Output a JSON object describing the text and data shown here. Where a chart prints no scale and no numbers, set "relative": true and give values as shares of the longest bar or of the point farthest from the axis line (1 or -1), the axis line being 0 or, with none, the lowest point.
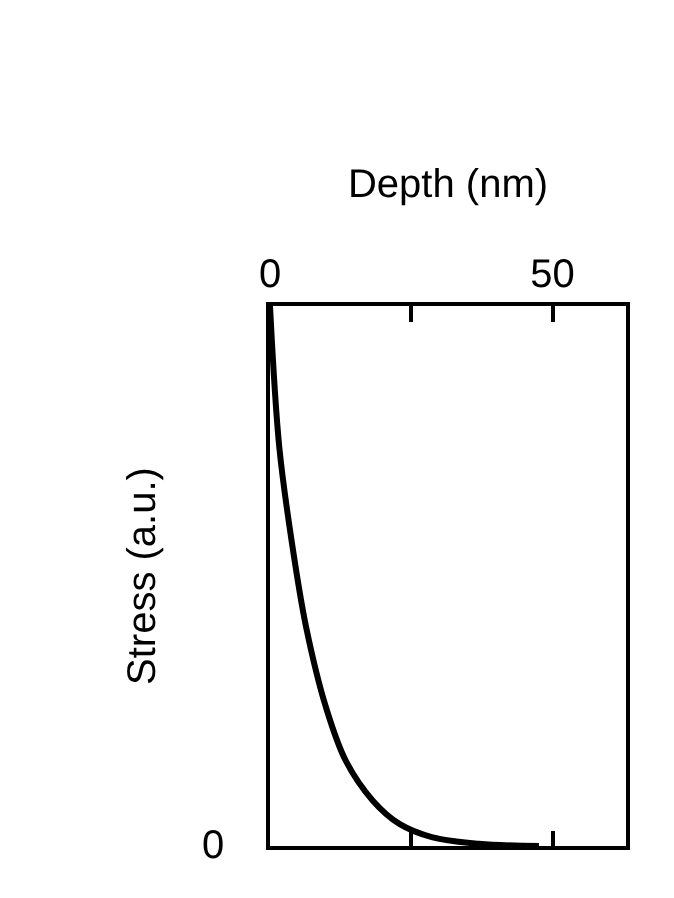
{
  "chart_data": {
    "type": "line",
    "xlabel": "Depth (nm)",
    "ylabel": "Stress (a.u.)",
    "relative": true,
    "xlim": [
      0,
      63
    ],
    "xticks": [
      0,
      {
        "value": 25,
        "label": null
      },
      50
    ],
    "series": [
      {
        "color": "#000000",
        "x": [
          0,
          1.65,
          4.0,
          6.4,
          9.9,
          13.4,
          18.2,
          22.9,
          28.8,
          37.0,
          47.6
        ],
        "values": [
          1,
          0.738,
          0.553,
          0.405,
          0.257,
          0.158,
          0.084,
          0.041,
          0.016,
          0.004,
          0
        ]
      }
    ],
    "annotations": [
      "0"
    ],
    "line_style": "solid",
    "marker": "none"
  }
}
